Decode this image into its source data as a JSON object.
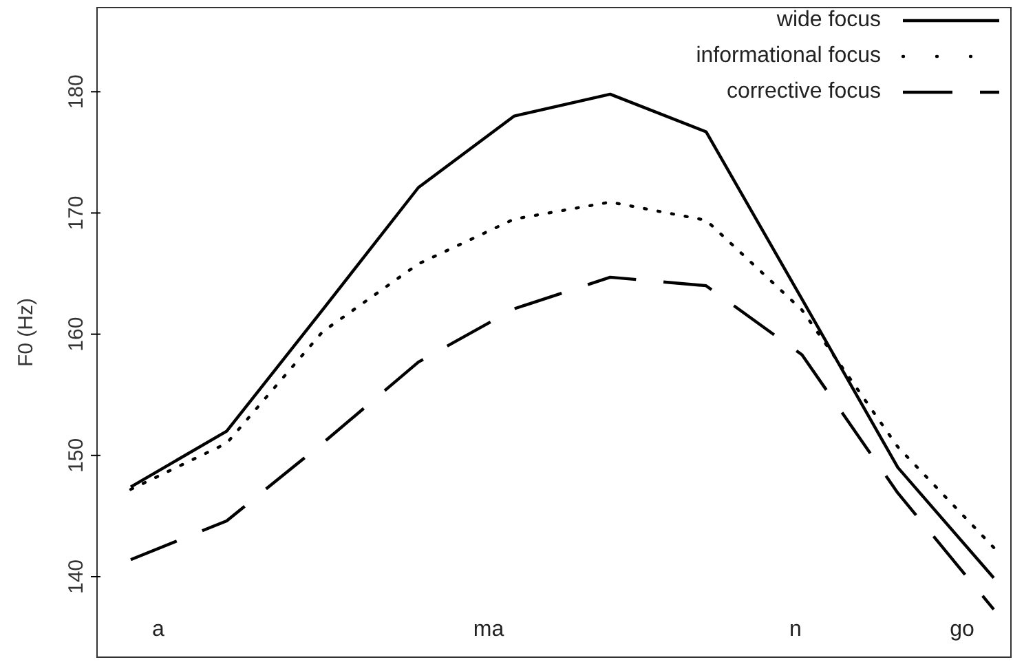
{
  "chart_data": {
    "type": "line",
    "ylabel": "F0 (Hz)",
    "categories": [
      null,
      null,
      null,
      null,
      null,
      null,
      null,
      null,
      null,
      null
    ],
    "ylim": [
      133.3,
      187
    ],
    "yticks": [
      140,
      150,
      160,
      170,
      180
    ],
    "tick_labels": "y",
    "series": [
      {
        "name": "wide focus",
        "color": "#000000",
        "line_style": "solid",
        "values": [
          147.4,
          152.0,
          162.0,
          172.1,
          178.0,
          179.8,
          176.7,
          162.9,
          149.0,
          139.9
        ]
      },
      {
        "name": "informational focus",
        "color": "#000000",
        "line_style": "dotted",
        "values": [
          147.2,
          151.0,
          160.2,
          165.8,
          169.5,
          170.9,
          169.4,
          162.0,
          150.7,
          142.4
        ]
      },
      {
        "name": "corrective focus",
        "color": "#000000",
        "line_style": "dashed",
        "values": [
          141.4,
          144.6,
          151.0,
          157.7,
          162.1,
          164.7,
          164.0,
          158.3,
          146.9,
          137.3
        ]
      }
    ],
    "annotations": [
      "a",
      "ma",
      "n",
      "go"
    ],
    "legend": "top right",
    "grid": false,
    "marker": "none"
  }
}
